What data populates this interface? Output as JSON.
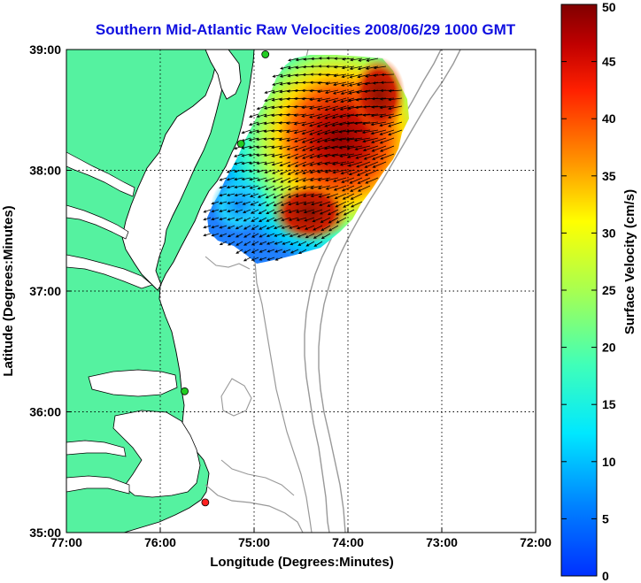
{
  "title": "Southern Mid-Atlantic Raw Velocities 2008/06/29 1000 GMT",
  "xlabel": "Longitude (Degrees:Minutes)",
  "ylabel": "Latitude (Degrees:Minutes)",
  "x_ticks": [
    "77:00",
    "76:00",
    "75:00",
    "74:00",
    "73:00",
    "72:00"
  ],
  "y_ticks": [
    "39:00",
    "38:00",
    "37:00",
    "36:00",
    "35:00"
  ],
  "colorbar": {
    "label": "Surface Velocity (cm/s)",
    "ticks": [
      "0",
      "5",
      "10",
      "15",
      "20",
      "25",
      "30",
      "35",
      "40",
      "45",
      "50"
    ],
    "min": 0,
    "max": 50,
    "colormap": "jet"
  },
  "colors": {
    "land": "#55f2a0",
    "title": "#1010e0",
    "bathymetry": "#999999"
  },
  "chart_data": {
    "type": "map",
    "title": "Southern Mid-Atlantic Raw Velocities 2008/06/29 1000 GMT",
    "xlabel": "Longitude (Degrees:Minutes)",
    "ylabel": "Latitude (Degrees:Minutes)",
    "xlim": [
      -77,
      -72
    ],
    "ylim": [
      35,
      39
    ],
    "grid": true,
    "gridstyle": "dotted",
    "stations": [
      {
        "lon": -74.88,
        "lat": 38.96,
        "color": "#22cc22"
      },
      {
        "lon": -75.14,
        "lat": 38.22,
        "color": "#22cc22"
      },
      {
        "lon": -75.74,
        "lat": 36.17,
        "color": "#22cc22"
      },
      {
        "lon": -75.52,
        "lat": 35.25,
        "color": "#ff2020"
      }
    ]
  }
}
